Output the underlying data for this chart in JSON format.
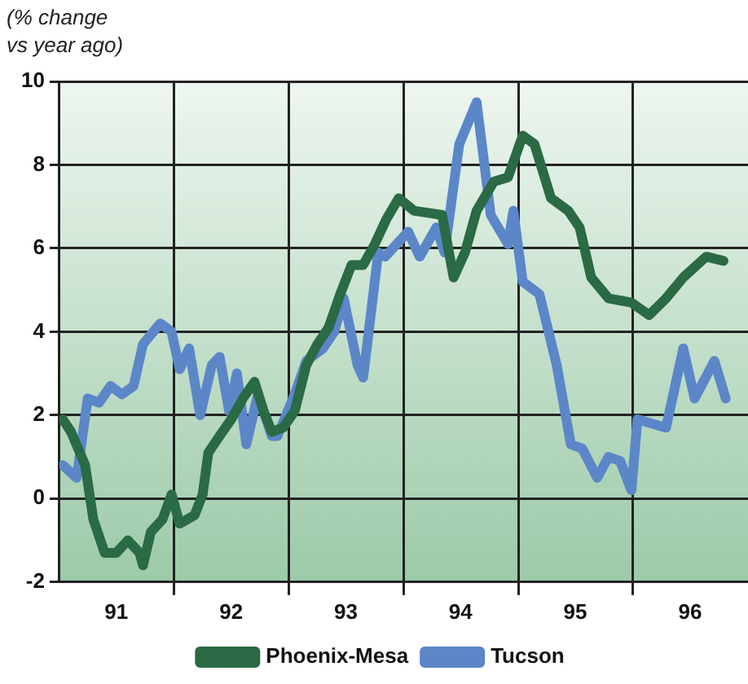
{
  "chart_data": {
    "type": "line",
    "ylabel": "(% change\nvs year ago)",
    "xlim": [
      "1991-01-01",
      "1997-01-01"
    ],
    "xticks": [
      {
        "value": "1991-07-01",
        "label": "91"
      },
      {
        "value": "1992-01-01",
        "label": null
      },
      {
        "value": "1992-07-01",
        "label": "92"
      },
      {
        "value": "1993-01-01",
        "label": null
      },
      {
        "value": "1993-07-01",
        "label": "93"
      },
      {
        "value": "1994-01-01",
        "label": null
      },
      {
        "value": "1994-07-01",
        "label": "94"
      },
      {
        "value": "1995-01-01",
        "label": null
      },
      {
        "value": "1995-07-01",
        "label": "95"
      },
      {
        "value": "1996-01-01",
        "label": null
      },
      {
        "value": "1996-07-01",
        "label": "96"
      }
    ],
    "ylim": [
      -2,
      10
    ],
    "yticks": [
      -2,
      0,
      2,
      4,
      6,
      8,
      10
    ],
    "grid": true,
    "legend": "bottom",
    "marker": "none",
    "line_style": "solid",
    "series": [
      {
        "name": "Phoenix-Mesa",
        "color": "#2a6a44",
        "x": [
          "1991-01-12",
          "1991-02-07",
          "1991-03-24",
          "1991-04-19",
          "1991-05-25",
          "1991-07-01",
          "1991-08-07",
          "1991-09-13",
          "1991-09-24",
          "1991-10-19",
          "1991-11-25",
          "1991-12-24",
          "1992-01-19",
          "1992-03-06",
          "1992-04-01",
          "1992-04-19",
          "1992-05-25",
          "1992-07-01",
          "1992-08-07",
          "1992-09-13",
          "1992-10-12",
          "1992-11-07",
          "1992-12-13",
          "1993-01-19",
          "1993-02-25",
          "1993-04-01",
          "1993-05-07",
          "1993-06-13",
          "1993-07-19",
          "1993-08-25",
          "1993-10-01",
          "1993-11-07",
          "1993-12-16",
          "1994-02-03",
          "1994-05-03",
          "1994-06-09",
          "1994-07-15",
          "1994-08-21",
          "1994-10-15",
          "1994-11-29",
          "1995-01-15",
          "1995-02-21",
          "1995-04-15",
          "1995-06-09",
          "1995-07-15",
          "1995-08-21",
          "1995-10-15",
          "1995-12-27",
          "1996-02-21",
          "1996-04-15",
          "1996-06-09",
          "1996-08-21",
          "1996-10-15"
        ],
        "values": [
          1.9,
          1.6,
          0.8,
          -0.5,
          -1.3,
          -1.3,
          -1.0,
          -1.3,
          -1.6,
          -0.8,
          -0.5,
          0.1,
          -0.6,
          -0.4,
          0.1,
          1.1,
          1.5,
          1.9,
          2.4,
          2.8,
          2.1,
          1.6,
          1.7,
          2.1,
          3.2,
          3.7,
          4.1,
          4.9,
          5.6,
          5.6,
          6.1,
          6.7,
          7.2,
          6.9,
          6.8,
          5.3,
          5.9,
          6.9,
          7.6,
          7.7,
          8.7,
          8.5,
          7.2,
          6.9,
          6.5,
          5.3,
          4.8,
          4.7,
          4.4,
          4.8,
          5.3,
          5.8,
          5.7
        ]
      },
      {
        "name": "Tucson",
        "color": "#5b86c8",
        "x": [
          "1991-01-12",
          "1991-02-25",
          "1991-04-01",
          "1991-05-07",
          "1991-06-13",
          "1991-07-19",
          "1991-08-25",
          "1991-09-24",
          "1991-11-18",
          "1991-12-24",
          "1992-01-19",
          "1992-02-18",
          "1992-03-24",
          "1992-04-30",
          "1992-05-25",
          "1992-06-24",
          "1992-07-19",
          "1992-08-18",
          "1992-09-24",
          "1992-11-07",
          "1992-11-25",
          "1993-01-19",
          "1993-02-25",
          "1993-04-19",
          "1993-05-25",
          "1993-06-24",
          "1993-08-07",
          "1993-08-25",
          "1993-10-12",
          "1993-11-03",
          "1994-01-15",
          "1994-02-21",
          "1994-04-15",
          "1994-05-11",
          "1994-06-27",
          "1994-08-21",
          "1994-10-05",
          "1994-11-29",
          "1994-12-16",
          "1995-01-15",
          "1995-03-09",
          "1995-05-03",
          "1995-06-17",
          "1995-07-23",
          "1995-09-09",
          "1995-10-15",
          "1995-11-21",
          "1995-12-27",
          "1996-01-15",
          "1996-04-15",
          "1996-06-09",
          "1996-07-15",
          "1996-09-16",
          "1996-10-22"
        ],
        "values": [
          0.8,
          0.5,
          2.4,
          2.3,
          2.7,
          2.5,
          2.7,
          3.7,
          4.2,
          4.0,
          3.1,
          3.6,
          2.0,
          3.2,
          3.4,
          2.1,
          3.0,
          1.3,
          2.5,
          1.5,
          1.5,
          2.5,
          3.3,
          3.6,
          4.0,
          4.8,
          3.2,
          2.9,
          5.9,
          5.8,
          6.4,
          5.8,
          6.5,
          5.9,
          8.5,
          9.5,
          6.8,
          6.1,
          6.9,
          5.2,
          4.9,
          3.2,
          1.3,
          1.2,
          0.5,
          1.0,
          0.9,
          0.2,
          1.9,
          1.7,
          3.6,
          2.4,
          3.3,
          2.4
        ]
      }
    ]
  }
}
